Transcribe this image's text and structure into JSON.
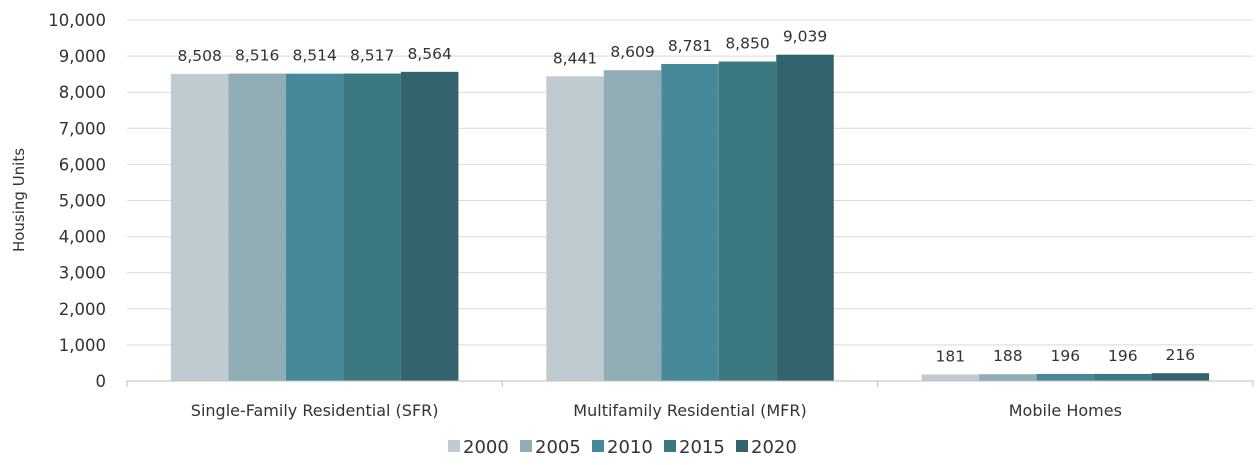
{
  "chart_data": {
    "type": "bar",
    "title": "",
    "xlabel": "",
    "ylabel": "Housing Units",
    "ylim": [
      0,
      10000
    ],
    "ytick_step": 1000,
    "ytick_labels": [
      "0",
      "1,000",
      "2,000",
      "3,000",
      "4,000",
      "5,000",
      "6,000",
      "7,000",
      "8,000",
      "9,000",
      "10,000"
    ],
    "grid": true,
    "legend_position": "bottom",
    "categories": [
      "Single-Family Residential (SFR)",
      "Multifamily Residential (MFR)",
      "Mobile Homes"
    ],
    "series": [
      {
        "name": "2000",
        "color": "#BFCBD1",
        "values": [
          8508,
          8441,
          181
        ],
        "labels": [
          "8,508",
          "8,441",
          "181"
        ]
      },
      {
        "name": "2005",
        "color": "#90ADB6",
        "values": [
          8516,
          8609,
          188
        ],
        "labels": [
          "8,516",
          "8,609",
          "188"
        ]
      },
      {
        "name": "2010",
        "color": "#468A9A",
        "values": [
          8514,
          8781,
          196
        ],
        "labels": [
          "8,514",
          "8,781",
          "196"
        ]
      },
      {
        "name": "2015",
        "color": "#3C7880",
        "values": [
          8517,
          8850,
          196
        ],
        "labels": [
          "8,517",
          "8,850",
          "196"
        ]
      },
      {
        "name": "2020",
        "color": "#33646E",
        "values": [
          8564,
          9039,
          216
        ],
        "labels": [
          "8,564",
          "9,039",
          "216"
        ]
      }
    ]
  },
  "colors": {
    "grid": "#D9D9D9",
    "axis": "#BFBFBF",
    "text": "#333333"
  }
}
